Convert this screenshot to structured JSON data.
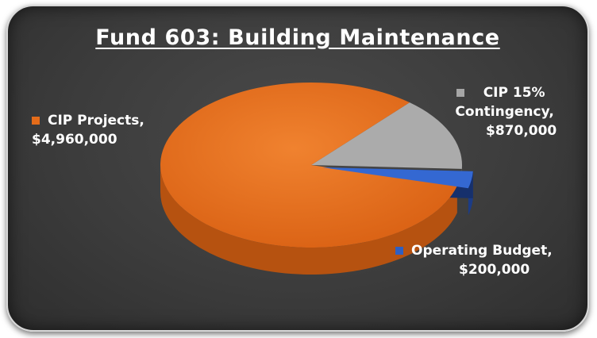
{
  "chart_data": {
    "type": "pie",
    "title": "Fund 603: Building Maintenance",
    "slices": [
      {
        "label": "CIP Projects,",
        "value_label": "$4,960,000",
        "value": 4960000,
        "color": "#e46c1a"
      },
      {
        "label": "CIP 15% Contingency,",
        "label_line1": "CIP 15%",
        "label_line2": "Contingency,",
        "value_label": "$870,000",
        "value": 870000,
        "color": "#a6a6a6"
      },
      {
        "label": "Operating Budget,",
        "value_label": "$200,000",
        "value": 200000,
        "color": "#2e5fc2"
      }
    ],
    "background_color": "#3c3c3c",
    "title_color": "#ffffff"
  }
}
